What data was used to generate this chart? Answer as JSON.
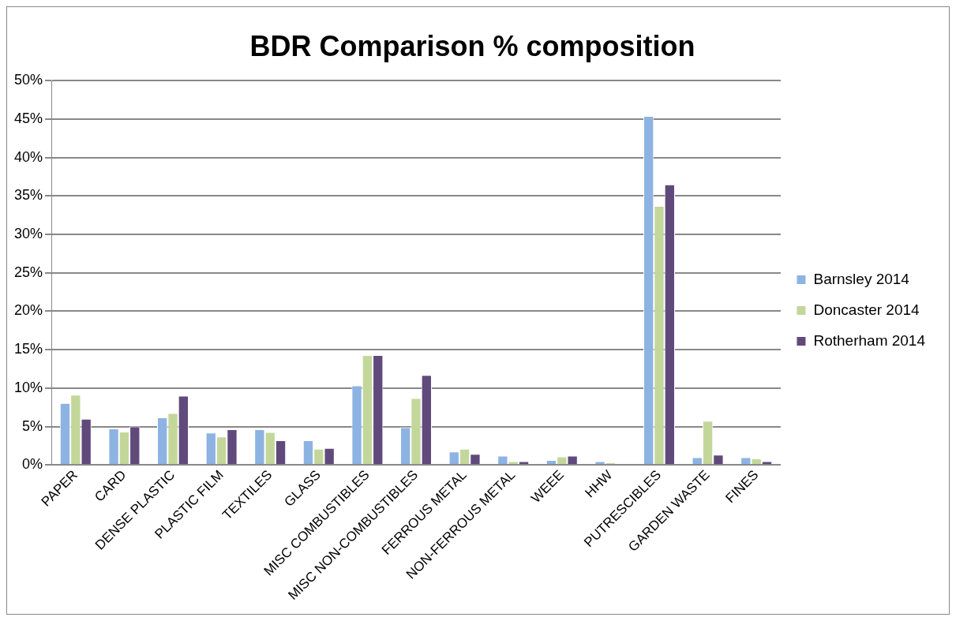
{
  "chart_data": {
    "type": "bar",
    "title": "BDR Comparison % composition",
    "categories": [
      "PAPER",
      "CARD",
      "DENSE PLASTIC",
      "PLASTIC FILM",
      "TEXTILES",
      "GLASS",
      "MISC COMBUSTIBLES",
      "MISC NON-COMBUSTIBLES",
      "FERROUS METAL",
      "NON-FERROUS METAL",
      "WEEE",
      "HHW",
      "PUTRESCIBLES",
      "GARDEN WASTE",
      "FINES"
    ],
    "series": [
      {
        "name": "Barnsley 2014",
        "color": "#8db3e2",
        "values": [
          8.05,
          4.75,
          6.2,
          4.2,
          4.65,
          3.2,
          10.35,
          4.9,
          1.75,
          1.2,
          0.65,
          0.5,
          45.4,
          1.0,
          1.0
        ]
      },
      {
        "name": "Doncaster 2014",
        "color": "#c4d79b",
        "values": [
          9.15,
          4.35,
          6.75,
          3.7,
          4.3,
          2.1,
          14.3,
          8.7,
          2.1,
          0.5,
          1.1,
          0.35,
          33.7,
          5.75,
          0.85
        ]
      },
      {
        "name": "Rotherham 2014",
        "color": "#604a7b",
        "values": [
          6.0,
          5.0,
          9.0,
          4.65,
          3.2,
          2.2,
          14.3,
          11.7,
          1.45,
          0.5,
          1.2,
          0,
          36.5,
          1.35,
          0.5
        ]
      }
    ],
    "ylim": [
      0,
      50
    ],
    "yticks": [
      {
        "value": 0,
        "label": "0%"
      },
      {
        "value": 5,
        "label": "5%"
      },
      {
        "value": 10,
        "label": "10%"
      },
      {
        "value": 15,
        "label": "15%"
      },
      {
        "value": 20,
        "label": "20%"
      },
      {
        "value": 25,
        "label": "25%"
      },
      {
        "value": 30,
        "label": "30%"
      },
      {
        "value": 35,
        "label": "35%"
      },
      {
        "value": 40,
        "label": "40%"
      },
      {
        "value": 45,
        "label": "45%"
      },
      {
        "value": 50,
        "label": "50%"
      }
    ],
    "grid": "y",
    "legend": "right"
  }
}
